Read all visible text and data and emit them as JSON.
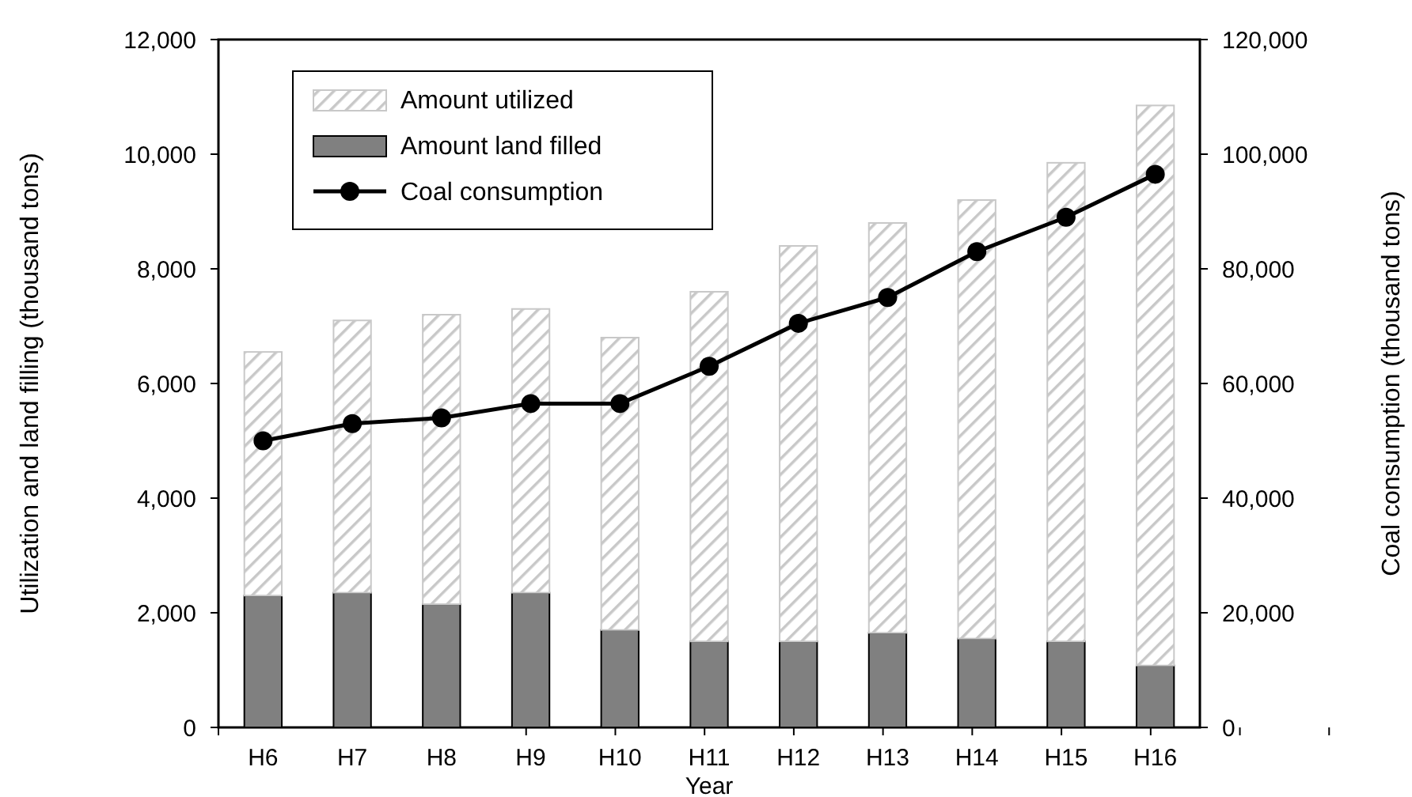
{
  "chart_data": {
    "type": "bar",
    "stacked": true,
    "xlabel": "Year",
    "ylabel": "Utilization and land filling (thousand tons)",
    "y2label": "Coal consumption (thousand tons)",
    "categories": [
      "H6",
      "H7",
      "H8",
      "H9",
      "H10",
      "H11",
      "H12",
      "H13",
      "H14",
      "H15",
      "H16"
    ],
    "series": [
      {
        "name": "Amount land filled",
        "color": "#808080",
        "values": [
          2300,
          2350,
          2150,
          2350,
          1700,
          1500,
          1500,
          1650,
          1550,
          1500,
          1080
        ]
      },
      {
        "name": "Amount utilized",
        "color": "#c8c8c8",
        "values": [
          4250,
          4750,
          5050,
          4950,
          5100,
          6100,
          6900,
          7150,
          7650,
          8350,
          9770
        ]
      },
      {
        "name": "Coal consumption",
        "type": "line",
        "axis": "y2",
        "color": "#000000",
        "marker": "circle",
        "values": [
          50000,
          53000,
          54000,
          56500,
          56500,
          63000,
          70500,
          75000,
          83000,
          89000,
          96500
        ]
      }
    ],
    "ylim": [
      0,
      12000
    ],
    "yticks": [
      {
        "value": 0,
        "label": "0"
      },
      {
        "value": 2000,
        "label": "2,000"
      },
      {
        "value": 4000,
        "label": "4,000"
      },
      {
        "value": 6000,
        "label": "6,000"
      },
      {
        "value": 8000,
        "label": "8,000"
      },
      {
        "value": 10000,
        "label": "10,000"
      },
      {
        "value": 12000,
        "label": "12,000"
      }
    ],
    "y2lim": [
      0,
      120000
    ],
    "y2ticks": [
      {
        "value": 0,
        "label": "0"
      },
      {
        "value": 20000,
        "label": "20,000"
      },
      {
        "value": 40000,
        "label": "40,000"
      },
      {
        "value": 60000,
        "label": "60,000"
      },
      {
        "value": 80000,
        "label": "80,000"
      },
      {
        "value": 100000,
        "label": "100,000"
      },
      {
        "value": 120000,
        "label": "120,000"
      }
    ],
    "legend": "top left",
    "grid": false
  }
}
